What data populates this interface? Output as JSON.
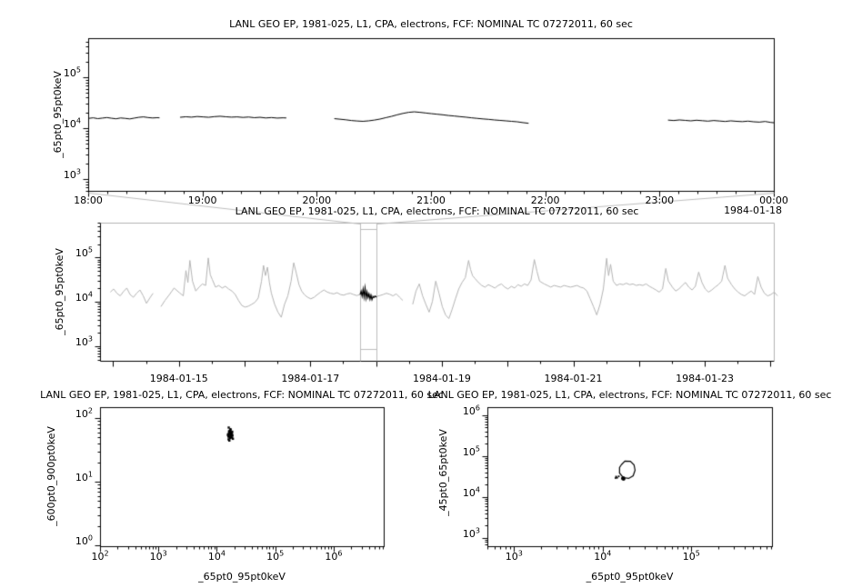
{
  "app": {
    "background": "#ffffff",
    "foreground": "#000000",
    "context_color": "#b3b3b3",
    "connector_color": "#bdbdbd"
  },
  "chart_data": [
    {
      "id": "zoom-timeseries",
      "type": "line",
      "title": "LANL GEO EP, 1981-025, L1, CPA, electrons, FCF: NOMINAL TC 07272011, 60 sec",
      "ylabel": "_65pt0_95pt0keV",
      "xlabel": "",
      "x_context_label": "1984-01-18",
      "xlog": false,
      "xlim": [
        18,
        24
      ],
      "ylim": [
        590,
        590000
      ],
      "x_minor_step": 0.16667,
      "x_ticks": [
        {
          "v": 18,
          "label": "18:00"
        },
        {
          "v": 19,
          "label": "19:00"
        },
        {
          "v": 20,
          "label": "20:00"
        },
        {
          "v": 21,
          "label": "21:00"
        },
        {
          "v": 22,
          "label": "22:00"
        },
        {
          "v": 23,
          "label": "23:00"
        },
        {
          "v": 24,
          "label": "00:00"
        }
      ],
      "y_tick_exponents": [
        3,
        4,
        5
      ],
      "color": "#000000",
      "segments": [
        {
          "x": [
            18.0,
            18.04,
            18.08,
            18.12,
            18.16,
            18.2,
            18.24,
            18.28,
            18.32,
            18.36,
            18.4,
            18.44,
            18.48,
            18.52,
            18.56,
            18.6,
            18.62
          ],
          "y": [
            16000,
            16400,
            15800,
            16200,
            16600,
            16100,
            15700,
            16300,
            16000,
            15600,
            16200,
            16800,
            17100,
            16600,
            16300,
            16500,
            16400
          ]
        },
        {
          "x": [
            18.8,
            18.85,
            18.9,
            18.95,
            19.0,
            19.05,
            19.1,
            19.15,
            19.2,
            19.25,
            19.3,
            19.35,
            19.4,
            19.45,
            19.5,
            19.55,
            19.6,
            19.65,
            19.7,
            19.73
          ],
          "y": [
            16800,
            17200,
            16900,
            17400,
            17100,
            16800,
            17300,
            17600,
            17200,
            16900,
            17100,
            16700,
            17000,
            16500,
            16800,
            16300,
            16600,
            16200,
            16400,
            16300
          ]
        },
        {
          "x": [
            20.15,
            20.2,
            20.25,
            20.3,
            20.35,
            20.4,
            20.45,
            20.5,
            20.55,
            20.6,
            20.65,
            20.7,
            20.75,
            20.8,
            20.85,
            20.9,
            20.95,
            21.0,
            21.05,
            21.1,
            21.15,
            21.2,
            21.25,
            21.3,
            21.35,
            21.4,
            21.45,
            21.5,
            21.55,
            21.6,
            21.65,
            21.7,
            21.75,
            21.8,
            21.85
          ],
          "y": [
            15800,
            15400,
            15000,
            14500,
            14200,
            14000,
            14300,
            14800,
            15500,
            16500,
            17500,
            18800,
            20000,
            21000,
            21500,
            21000,
            20400,
            19800,
            19300,
            18800,
            18200,
            17800,
            17300,
            16900,
            16400,
            16000,
            15600,
            15300,
            14900,
            14600,
            14300,
            14000,
            13700,
            13200,
            12800
          ]
        },
        {
          "x": [
            23.07,
            23.12,
            23.17,
            23.22,
            23.27,
            23.32,
            23.37,
            23.42,
            23.47,
            23.52,
            23.57,
            23.62,
            23.67,
            23.72,
            23.77,
            23.82,
            23.87,
            23.92,
            23.97,
            24.0
          ],
          "y": [
            14800,
            14500,
            14900,
            14600,
            14300,
            14700,
            14400,
            14100,
            14500,
            14200,
            13900,
            14300,
            14000,
            13800,
            14100,
            13700,
            13500,
            13900,
            13300,
            13100
          ]
        }
      ]
    },
    {
      "id": "context-timeseries",
      "type": "line",
      "title": "LANL GEO EP, 1981-025, L1, CPA, electrons, FCF: NOMINAL TC 07272011, 60 sec",
      "ylabel": "_65pt0_95pt0keV",
      "xlabel": "",
      "xlog": false,
      "xlim": [
        13.8,
        24.05
      ],
      "ylim": [
        470,
        610000
      ],
      "x_minor_step": 0.5,
      "x_major_unlabeled": [
        14,
        16,
        18,
        20,
        22,
        24
      ],
      "x_ticks": [
        {
          "v": 15,
          "label": "1984-01-15"
        },
        {
          "v": 17,
          "label": "1984-01-17"
        },
        {
          "v": 19,
          "label": "1984-01-19"
        },
        {
          "v": 21,
          "label": "1984-01-21"
        },
        {
          "v": 23,
          "label": "1984-01-23"
        }
      ],
      "y_tick_exponents": [
        3,
        4,
        5
      ],
      "color": "#b3b3b3",
      "highlight": {
        "range": [
          17.75,
          18.0
        ],
        "color": "#000000",
        "x": [
          17.75,
          17.765,
          17.78,
          17.795,
          17.81,
          17.825,
          17.84,
          17.855,
          17.87,
          17.885,
          17.9,
          17.915,
          17.93,
          17.945,
          17.96,
          17.98,
          18.0
        ],
        "y": [
          15000,
          17800,
          13800,
          19800,
          13200,
          21000,
          12400,
          17000,
          12800,
          15500,
          11800,
          14500,
          11500,
          13500,
          12800,
          13800,
          13000
        ]
      },
      "segments": [
        {
          "x": [
            13.95,
            14.0,
            14.05,
            14.1,
            14.15,
            14.2,
            14.25,
            14.3,
            14.35,
            14.4,
            14.45,
            14.5,
            14.55,
            14.6
          ],
          "y": [
            17000,
            20000,
            16000,
            14000,
            17500,
            21000,
            15000,
            13000,
            16000,
            19000,
            14000,
            9500,
            12500,
            16000
          ]
        },
        {
          "x": [
            14.72,
            14.78,
            14.85,
            14.92,
            15.0,
            15.06,
            15.1,
            15.13,
            15.16,
            15.2,
            15.25,
            15.3,
            15.35,
            15.4,
            15.44,
            15.47,
            15.5,
            15.55,
            15.6,
            15.65,
            15.7,
            15.75,
            15.8,
            15.85,
            15.9,
            15.95,
            16.0,
            16.05,
            16.1,
            16.15,
            16.2,
            16.25,
            16.28,
            16.31,
            16.34,
            16.37,
            16.4,
            16.45,
            16.5,
            16.55,
            16.6,
            16.65,
            16.7,
            16.74,
            16.78,
            16.82,
            16.86,
            16.9,
            16.95,
            17.0,
            17.05,
            17.1,
            17.15,
            17.2,
            17.25,
            17.3,
            17.35,
            17.4,
            17.45,
            17.5,
            17.55,
            17.6,
            17.65,
            17.7,
            17.75,
            17.8,
            17.85,
            17.9,
            17.95,
            18.0,
            18.05,
            18.1,
            18.15,
            18.2,
            18.25,
            18.3,
            18.35,
            18.4
          ],
          "y": [
            8000,
            11000,
            15000,
            21000,
            16500,
            14000,
            52000,
            28000,
            88000,
            30000,
            18000,
            22000,
            26000,
            24000,
            100000,
            42000,
            33000,
            22000,
            24000,
            21000,
            23000,
            20000,
            18000,
            15000,
            11000,
            8500,
            7800,
            8200,
            9000,
            10000,
            12500,
            30000,
            68000,
            40000,
            62000,
            28000,
            16000,
            9000,
            6000,
            4600,
            9000,
            14000,
            30000,
            78000,
            45000,
            25000,
            18000,
            15000,
            13000,
            12000,
            13000,
            15000,
            17000,
            19000,
            17000,
            16000,
            15500,
            16500,
            15000,
            14500,
            15500,
            16000,
            15000,
            14200,
            15000,
            14500,
            15800,
            14800,
            14000,
            13500,
            14200,
            15000,
            16000,
            15200,
            14000,
            15500,
            13000,
            11000
          ]
        },
        {
          "x": [
            18.55,
            18.6,
            18.65,
            18.7,
            18.75,
            18.8,
            18.85,
            18.9,
            18.95,
            19.0,
            19.05,
            19.1,
            19.15,
            19.2,
            19.25,
            19.3,
            19.35,
            19.4,
            19.43,
            19.46,
            19.5,
            19.55,
            19.6,
            19.65,
            19.7,
            19.75,
            19.8,
            19.85,
            19.9,
            19.95,
            20.0,
            20.05,
            20.1,
            20.15,
            20.2,
            20.25,
            20.3,
            20.35,
            20.4,
            20.44,
            20.48,
            20.55,
            20.6,
            20.65,
            20.7,
            20.75,
            20.8,
            20.85,
            20.9,
            20.95,
            21.0,
            21.05,
            21.1,
            21.15,
            21.2,
            21.25,
            21.3,
            21.35,
            21.4,
            21.45,
            21.5,
            21.53,
            21.56,
            21.6,
            21.65,
            21.7,
            21.75,
            21.8,
            21.85,
            21.9,
            21.95,
            22.0,
            22.05,
            22.1,
            22.15,
            22.2,
            22.25,
            22.3,
            22.35,
            22.4,
            22.44,
            22.5,
            22.55,
            22.6,
            22.65,
            22.7,
            22.75,
            22.8,
            22.85,
            22.9,
            22.95,
            23.0,
            23.05,
            23.1,
            23.15,
            23.2,
            23.25,
            23.3,
            23.34,
            23.4,
            23.45,
            23.5,
            23.55,
            23.6,
            23.65,
            23.7,
            23.75,
            23.8,
            23.85,
            23.9,
            23.95,
            24.0,
            24.05,
            24.1
          ],
          "y": [
            9000,
            18000,
            26000,
            14000,
            9000,
            6000,
            10500,
            30000,
            16000,
            8000,
            5200,
            4300,
            7000,
            12000,
            20000,
            28000,
            36000,
            88000,
            55000,
            40000,
            34000,
            28000,
            24000,
            22000,
            25000,
            23000,
            21000,
            24000,
            26000,
            22000,
            20000,
            23000,
            21000,
            25000,
            23000,
            26000,
            24000,
            32000,
            92000,
            50000,
            30000,
            26000,
            24000,
            22000,
            24000,
            23000,
            22000,
            24000,
            23000,
            22000,
            23000,
            24000,
            22000,
            21000,
            18000,
            12000,
            8000,
            5200,
            9000,
            20000,
            98000,
            40000,
            72000,
            30000,
            24000,
            26000,
            25000,
            27000,
            25000,
            26000,
            24000,
            25000,
            24000,
            26000,
            23000,
            21000,
            19000,
            17000,
            20000,
            58000,
            30000,
            22000,
            18000,
            20000,
            24000,
            28000,
            22000,
            19000,
            23000,
            48000,
            28000,
            20000,
            17000,
            19000,
            22000,
            25000,
            30000,
            68000,
            35000,
            25000,
            20000,
            17000,
            15000,
            14000,
            16000,
            18000,
            15000,
            38000,
            22000,
            16000,
            14000,
            15000,
            17000,
            14000
          ]
        }
      ]
    },
    {
      "id": "scatter-600-900",
      "type": "scatter",
      "title": "LANL GEO EP, 1981-025, L1, CPA, electrons, FCF: NOMINAL TC 07272011, 60 sec",
      "ylabel": "_600pt0_900pt0keV",
      "xlabel": "_65pt0_95pt0keV",
      "xlog": true,
      "xlim": [
        100,
        7200000
      ],
      "ylim": [
        0.98,
        148
      ],
      "x_tick_exponents": [
        2,
        3,
        4,
        5,
        6
      ],
      "y_tick_exponents": [
        0,
        1,
        2
      ],
      "color": "#000000",
      "points": {
        "x": [
          15500,
          16200,
          17000,
          17800,
          16500,
          15900,
          17500,
          18200,
          16900,
          16300,
          17100,
          15600,
          18000,
          16700,
          17300,
          15800,
          16100,
          17700,
          16400,
          17900,
          15400,
          16800,
          17200,
          16000,
          18500,
          15200,
          16600,
          17400,
          15700,
          17600
        ],
        "y": [
          52,
          61,
          55,
          58,
          49,
          63,
          57,
          54,
          66,
          51,
          59,
          47,
          62,
          56,
          60,
          53,
          45,
          58,
          64,
          50,
          57,
          68,
          54,
          61,
          48,
          55,
          59,
          52,
          72,
          56
        ]
      }
    },
    {
      "id": "scatter-45-65",
      "type": "scatter",
      "title": "LANL GEO EP, 1981-025, L1, CPA, electrons, FCF: NOMINAL TC 07272011, 60 sec",
      "ylabel": "_45pt0_65pt0keV",
      "xlabel": "_65pt0_95pt0keV",
      "xlog": true,
      "xlim": [
        500,
        812000
      ],
      "ylim": [
        630,
        1580000
      ],
      "x_tick_exponents": [
        3,
        4,
        5
      ],
      "y_tick_exponents": [
        3,
        4,
        5,
        6
      ],
      "color": "#000000",
      "loop": {
        "x": [
          16000,
          17600,
          20300,
          22300,
          22900,
          21800,
          19400,
          16800,
          15300,
          15300,
          16000
        ],
        "y": [
          63000,
          77500,
          77000,
          63000,
          46500,
          34100,
          29300,
          30800,
          39800,
          54000,
          63000
        ]
      },
      "blob": {
        "x": [
          16800,
          17000,
          16500,
          17200,
          16900,
          16600,
          17100,
          16700,
          16950,
          16400,
          17300,
          16850
        ],
        "y": [
          29000,
          28000,
          30000,
          29500,
          27500,
          28500,
          30500,
          29800,
          28800,
          29200,
          28300,
          31000
        ]
      },
      "tail": {
        "x": [
          15000,
          14400,
          14000,
          13800
        ],
        "y": [
          33000,
          30500,
          32500,
          30000
        ]
      }
    }
  ]
}
